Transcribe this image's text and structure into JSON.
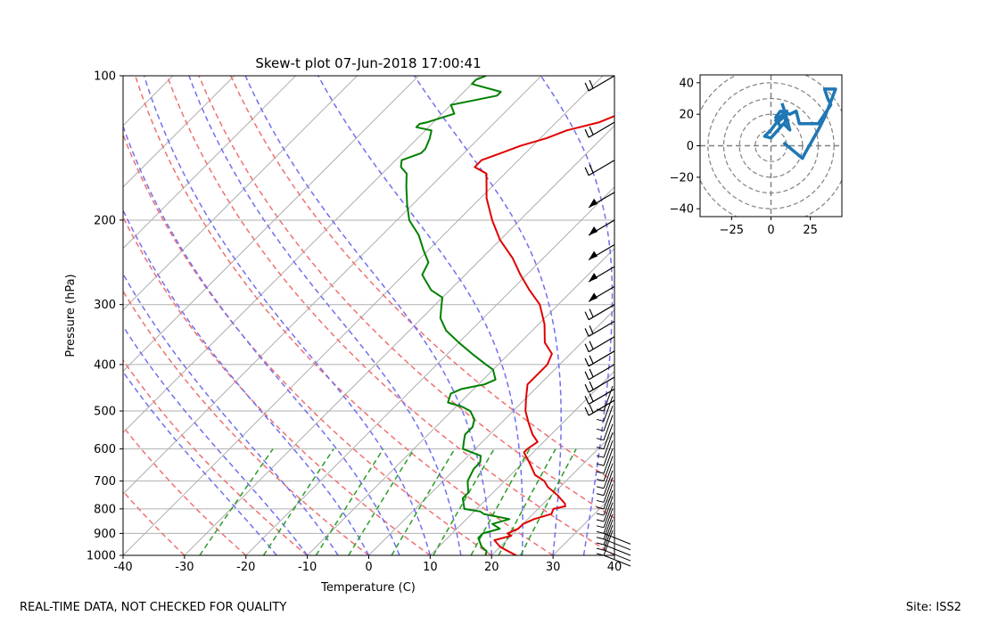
{
  "chart_data": [
    {
      "type": "line",
      "title": "Skew-t plot 07-Jun-2018 17:00:41",
      "xlabel": "Temperature (C)",
      "ylabel": "Pressure (hPa)",
      "xlim": [
        -40,
        40
      ],
      "ylim": [
        1000,
        100
      ],
      "y_scale": "log",
      "x_ticks": [
        -40,
        -30,
        -20,
        -10,
        0,
        10,
        20,
        30,
        40
      ],
      "y_ticks": [
        100,
        200,
        300,
        400,
        500,
        600,
        700,
        800,
        900,
        1000
      ],
      "grid": true,
      "series": [
        {
          "name": "",
          "color": "#e00000",
          "points": [
            [
              1000,
              24
            ],
            [
              980,
              22
            ],
            [
              960,
              20
            ],
            [
              930,
              18
            ],
            [
              920,
              19
            ],
            [
              910,
              20
            ],
            [
              900,
              19
            ],
            [
              880,
              20
            ],
            [
              860,
              20
            ],
            [
              840,
              21
            ],
            [
              820,
              23
            ],
            [
              800,
              22.5
            ],
            [
              790,
              24
            ],
            [
              780,
              23.5
            ],
            [
              750,
              21
            ],
            [
              720,
              18
            ],
            [
              700,
              16.5
            ],
            [
              680,
              14
            ],
            [
              640,
              11
            ],
            [
              610,
              8.5
            ],
            [
              600,
              8.5
            ],
            [
              580,
              9
            ],
            [
              560,
              7
            ],
            [
              530,
              4.5
            ],
            [
              500,
              2
            ],
            [
              470,
              0
            ],
            [
              440,
              -2
            ],
            [
              420,
              -2
            ],
            [
              400,
              -2
            ],
            [
              380,
              -3
            ],
            [
              360,
              -6
            ],
            [
              330,
              -9
            ],
            [
              300,
              -13
            ],
            [
              280,
              -17
            ],
            [
              260,
              -21
            ],
            [
              240,
              -25
            ],
            [
              220,
              -30
            ],
            [
              200,
              -34.5
            ],
            [
              180,
              -39
            ],
            [
              160,
              -43
            ],
            [
              155,
              -46
            ],
            [
              150,
              -46
            ],
            [
              145,
              -44
            ],
            [
              140,
              -42
            ],
            [
              135,
              -39
            ],
            [
              130,
              -37
            ],
            [
              125,
              -33
            ],
            [
              120,
              -31
            ],
            [
              115,
              -26
            ],
            [
              110,
              -22
            ],
            [
              105,
              -19
            ],
            [
              100,
              -15
            ]
          ]
        },
        {
          "name": "",
          "color": "#008000",
          "points": [
            [
              1000,
              19
            ],
            [
              980,
              18.5
            ],
            [
              960,
              17
            ],
            [
              940,
              16
            ],
            [
              920,
              15
            ],
            [
              900,
              15
            ],
            [
              880,
              17
            ],
            [
              860,
              15
            ],
            [
              840,
              17
            ],
            [
              820,
              12
            ],
            [
              810,
              11
            ],
            [
              800,
              8
            ],
            [
              780,
              7
            ],
            [
              760,
              6
            ],
            [
              740,
              6
            ],
            [
              720,
              5
            ],
            [
              700,
              4
            ],
            [
              660,
              3
            ],
            [
              640,
              3
            ],
            [
              620,
              2
            ],
            [
              600,
              -2
            ],
            [
              580,
              -3
            ],
            [
              560,
              -4
            ],
            [
              540,
              -4
            ],
            [
              520,
              -5
            ],
            [
              500,
              -7
            ],
            [
              490,
              -9
            ],
            [
              480,
              -12
            ],
            [
              460,
              -13
            ],
            [
              450,
              -12
            ],
            [
              440,
              -9
            ],
            [
              430,
              -8
            ],
            [
              420,
              -9
            ],
            [
              410,
              -10
            ],
            [
              400,
              -12
            ],
            [
              380,
              -16
            ],
            [
              360,
              -20
            ],
            [
              340,
              -24
            ],
            [
              320,
              -27
            ],
            [
              300,
              -29
            ],
            [
              290,
              -30
            ],
            [
              280,
              -33
            ],
            [
              260,
              -37
            ],
            [
              245,
              -38
            ],
            [
              230,
              -41
            ],
            [
              215,
              -44
            ],
            [
              200,
              -48
            ],
            [
              185,
              -51
            ],
            [
              170,
              -54
            ],
            [
              160,
              -56
            ],
            [
              155,
              -58
            ],
            [
              150,
              -59
            ],
            [
              145,
              -57
            ],
            [
              142,
              -57
            ],
            [
              135,
              -58
            ],
            [
              130,
              -59
            ],
            [
              128,
              -62
            ],
            [
              126,
              -62
            ],
            [
              125,
              -61
            ],
            [
              120,
              -58
            ],
            [
              115,
              -60
            ],
            [
              110,
              -54
            ],
            [
              108,
              -54
            ],
            [
              104,
              -60
            ],
            [
              102,
              -60
            ],
            [
              100,
              -59
            ]
          ]
        }
      ],
      "isotherms_every_C": 10,
      "dry_adiabats": {
        "color": "#f07070",
        "theta_C": [
          -30,
          -20,
          -10,
          0,
          10,
          20,
          30,
          40,
          50,
          60
        ]
      },
      "moist_adiabats": {
        "color": "#7070f0",
        "start_temp_C": [
          -15,
          -10,
          -5,
          0,
          5,
          10,
          15,
          20,
          25,
          30,
          35
        ]
      },
      "mixing_ratio_lines": {
        "color": "#2a9d2a",
        "w_g_per_kg": [
          0.4,
          1,
          2,
          3,
          5,
          8,
          12,
          16,
          20
        ],
        "top_hPa": 600
      },
      "wind_barbs": {
        "color": "#000000",
        "side": "right"
      }
    },
    {
      "type": "line",
      "title": "",
      "xlim": [
        -45,
        45
      ],
      "ylim": [
        -45,
        45
      ],
      "x_ticks": [
        -25,
        0,
        25
      ],
      "y_ticks": [
        -40,
        -20,
        0,
        20,
        40
      ],
      "rings": [
        10,
        20,
        30,
        40,
        50
      ],
      "series": [
        {
          "name": "",
          "color": "#1f77b4",
          "points": [
            [
              8,
              2
            ],
            [
              20,
              -8
            ],
            [
              22,
              -4
            ],
            [
              30,
              10
            ],
            [
              34,
              18
            ],
            [
              38,
              28
            ],
            [
              41,
              36
            ],
            [
              34,
              36
            ],
            [
              36,
              30
            ],
            [
              38,
              26
            ],
            [
              30,
              14
            ],
            [
              18,
              14
            ],
            [
              16,
              22
            ],
            [
              12,
              20
            ],
            [
              6,
              22
            ],
            [
              3,
              18
            ],
            [
              6,
              12
            ],
            [
              9,
              15
            ],
            [
              10,
              22
            ],
            [
              3,
              16
            ],
            [
              8,
              18
            ],
            [
              3,
              14
            ],
            [
              0,
              10
            ],
            [
              -4,
              6
            ],
            [
              0,
              5
            ],
            [
              8,
              14
            ],
            [
              12,
              10
            ],
            [
              9,
              20
            ],
            [
              11,
              14
            ],
            [
              8,
              24
            ],
            [
              7,
              27
            ]
          ]
        }
      ]
    }
  ],
  "footer": {
    "left": "REAL-TIME DATA, NOT CHECKED FOR QUALITY",
    "right": "Site: ISS2"
  }
}
